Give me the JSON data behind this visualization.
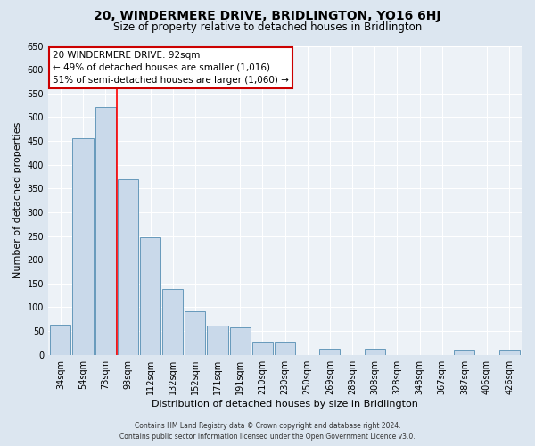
{
  "title": "20, WINDERMERE DRIVE, BRIDLINGTON, YO16 6HJ",
  "subtitle": "Size of property relative to detached houses in Bridlington",
  "xlabel": "Distribution of detached houses by size in Bridlington",
  "ylabel": "Number of detached properties",
  "bar_labels": [
    "34sqm",
    "54sqm",
    "73sqm",
    "93sqm",
    "112sqm",
    "132sqm",
    "152sqm",
    "171sqm",
    "191sqm",
    "210sqm",
    "230sqm",
    "250sqm",
    "269sqm",
    "289sqm",
    "308sqm",
    "328sqm",
    "348sqm",
    "367sqm",
    "387sqm",
    "406sqm",
    "426sqm"
  ],
  "bar_values": [
    63,
    455,
    522,
    370,
    247,
    138,
    92,
    62,
    57,
    27,
    27,
    0,
    13,
    0,
    12,
    0,
    0,
    0,
    10,
    0,
    10
  ],
  "bar_color": "#c9d9ea",
  "bar_edge_color": "#6699bb",
  "red_line_index": 3,
  "ylim": [
    0,
    650
  ],
  "yticks": [
    0,
    50,
    100,
    150,
    200,
    250,
    300,
    350,
    400,
    450,
    500,
    550,
    600,
    650
  ],
  "annotation_title": "20 WINDERMERE DRIVE: 92sqm",
  "annotation_line1": "← 49% of detached houses are smaller (1,016)",
  "annotation_line2": "51% of semi-detached houses are larger (1,060) →",
  "annotation_box_color": "#ffffff",
  "annotation_box_edge": "#cc0000",
  "footer1": "Contains HM Land Registry data © Crown copyright and database right 2024.",
  "footer2": "Contains public sector information licensed under the Open Government Licence v3.0.",
  "bg_color": "#dce6f0",
  "plot_bg_color": "#edf2f7",
  "grid_color": "#ffffff",
  "title_fontsize": 10,
  "subtitle_fontsize": 8.5,
  "tick_fontsize": 7,
  "ylabel_fontsize": 8,
  "xlabel_fontsize": 8,
  "annotation_fontsize": 7.5,
  "footer_fontsize": 5.5
}
